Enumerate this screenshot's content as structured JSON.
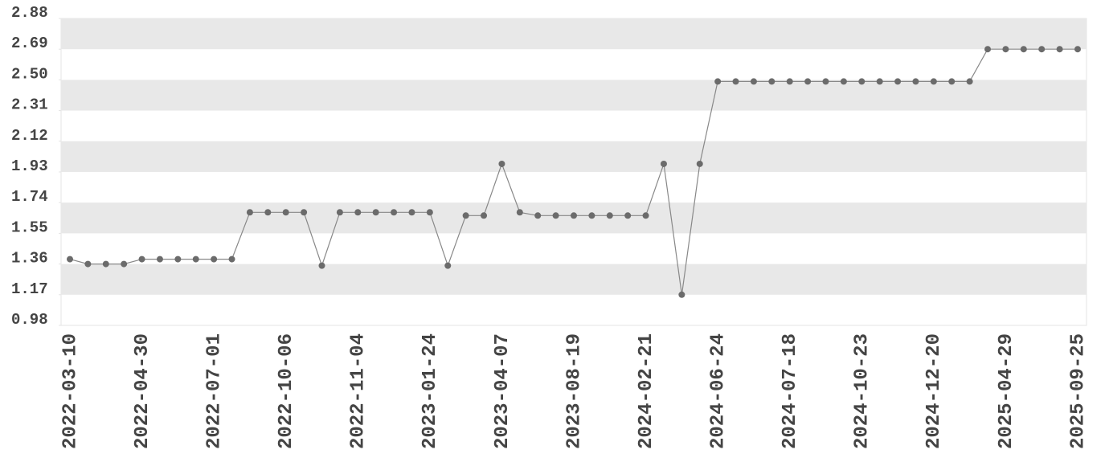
{
  "chart_data": {
    "type": "line",
    "categories": [
      "2022-03-10",
      null,
      null,
      null,
      "2022-04-30",
      null,
      null,
      null,
      "2022-07-01",
      null,
      null,
      null,
      "2022-10-06",
      null,
      null,
      null,
      "2022-11-04",
      null,
      null,
      null,
      "2023-01-24",
      null,
      null,
      null,
      "2023-04-07",
      null,
      null,
      null,
      "2023-08-19",
      null,
      null,
      null,
      "2024-02-21",
      null,
      null,
      null,
      "2024-06-24",
      null,
      null,
      null,
      "2024-07-18",
      null,
      null,
      null,
      "2024-10-23",
      null,
      null,
      null,
      "2024-12-20",
      null,
      null,
      null,
      "2025-04-29",
      null,
      null,
      null,
      "2025-09-25"
    ],
    "values": [
      1.39,
      1.36,
      1.36,
      1.36,
      1.39,
      1.39,
      1.39,
      1.39,
      1.39,
      1.39,
      1.68,
      1.68,
      1.68,
      1.68,
      1.35,
      1.68,
      1.68,
      1.68,
      1.68,
      1.68,
      1.68,
      1.35,
      1.66,
      1.66,
      1.98,
      1.68,
      1.66,
      1.66,
      1.66,
      1.66,
      1.66,
      1.66,
      1.66,
      1.98,
      1.17,
      1.98,
      2.49,
      2.49,
      2.49,
      2.49,
      2.49,
      2.49,
      2.49,
      2.49,
      2.49,
      2.49,
      2.49,
      2.49,
      2.49,
      2.49,
      2.49,
      2.69,
      2.69,
      2.69,
      2.69,
      2.69,
      2.69
    ],
    "color": "#888888",
    "marker_color": "#6b6b6b",
    "ylim": [
      0.98,
      2.88
    ],
    "yticks": [
      0.98,
      1.17,
      1.36,
      1.55,
      1.74,
      1.93,
      2.12,
      2.31,
      {
        "value": 2.5,
        "label": "2.50"
      },
      2.69,
      2.88
    ],
    "grid": "bands",
    "band_color": "#e8e8e8"
  }
}
